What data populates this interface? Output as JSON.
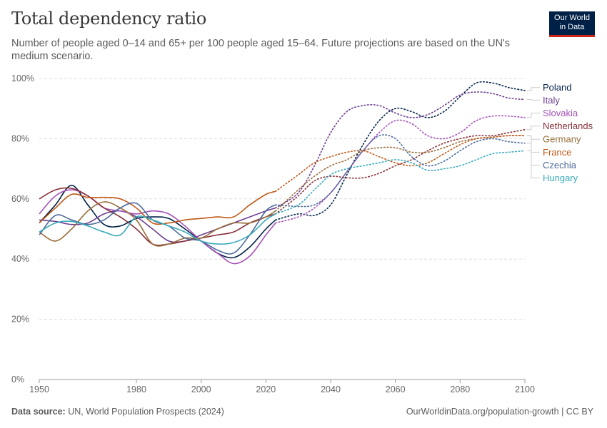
{
  "header": {
    "title": "Total dependency ratio",
    "subtitle": "Number of people aged 0–14 and 65+ per 100 people aged 15–64. Future projections are based on the UN's medium scenario."
  },
  "logo": {
    "line1": "Our World",
    "line2": "in Data"
  },
  "footer": {
    "source_label": "Data source:",
    "source_text": "UN, World Population Prospects (2024)",
    "url_text": "OurWorldinData.org/population-growth | CC BY"
  },
  "chart_data": {
    "type": "line",
    "title": "Total dependency ratio",
    "xlim": [
      1950,
      2100
    ],
    "ylim": [
      0,
      100
    ],
    "x_ticks": [
      1950,
      1980,
      2000,
      2020,
      2040,
      2060,
      2080,
      2100
    ],
    "x_tick_labels": [
      "1950",
      "1980",
      "2000",
      "2020",
      "2040",
      "2060",
      "2080",
      "2100"
    ],
    "y_ticks": [
      0,
      20,
      40,
      60,
      80,
      100
    ],
    "y_tick_labels": [
      "0%",
      "20%",
      "40%",
      "60%",
      "80%",
      "100%"
    ],
    "grid": "horizontal dashed",
    "projection_start": 2023,
    "legend_position": "right",
    "series": [
      {
        "name": "Poland",
        "color": "#002147",
        "legend_y": 97,
        "observed": [
          [
            1950,
            52
          ],
          [
            1955,
            58
          ],
          [
            1960,
            64.5
          ],
          [
            1965,
            58
          ],
          [
            1970,
            51.5
          ],
          [
            1975,
            51
          ],
          [
            1980,
            53.5
          ],
          [
            1985,
            54
          ],
          [
            1990,
            53.5
          ],
          [
            1995,
            50
          ],
          [
            2000,
            46
          ],
          [
            2005,
            42
          ],
          [
            2010,
            40.5
          ],
          [
            2015,
            44
          ],
          [
            2020,
            50
          ],
          [
            2023,
            53
          ]
        ],
        "projected": [
          [
            2023,
            53
          ],
          [
            2030,
            55
          ],
          [
            2035,
            54.5
          ],
          [
            2040,
            58
          ],
          [
            2045,
            68
          ],
          [
            2050,
            78
          ],
          [
            2055,
            86
          ],
          [
            2060,
            90
          ],
          [
            2065,
            89
          ],
          [
            2070,
            87
          ],
          [
            2075,
            89
          ],
          [
            2080,
            94
          ],
          [
            2085,
            98.5
          ],
          [
            2090,
            98.5
          ],
          [
            2095,
            97
          ],
          [
            2100,
            96
          ]
        ]
      },
      {
        "name": "Italy",
        "color": "#6d3e91",
        "legend_y": 92.8,
        "observed": [
          [
            1950,
            53
          ],
          [
            1955,
            52.5
          ],
          [
            1960,
            51.5
          ],
          [
            1965,
            52
          ],
          [
            1970,
            55
          ],
          [
            1975,
            56
          ],
          [
            1980,
            54
          ],
          [
            1985,
            50
          ],
          [
            1990,
            46
          ],
          [
            1995,
            46
          ],
          [
            2000,
            48
          ],
          [
            2005,
            50
          ],
          [
            2010,
            52
          ],
          [
            2015,
            54
          ],
          [
            2020,
            56
          ],
          [
            2023,
            57
          ]
        ],
        "projected": [
          [
            2023,
            57
          ],
          [
            2030,
            62
          ],
          [
            2035,
            71
          ],
          [
            2040,
            82
          ],
          [
            2045,
            89
          ],
          [
            2050,
            91
          ],
          [
            2055,
            91
          ],
          [
            2060,
            88.5
          ],
          [
            2065,
            87
          ],
          [
            2070,
            88
          ],
          [
            2075,
            91
          ],
          [
            2080,
            94.5
          ],
          [
            2085,
            95.5
          ],
          [
            2090,
            95
          ],
          [
            2095,
            93.5
          ],
          [
            2100,
            93
          ]
        ]
      },
      {
        "name": "Slovakia",
        "color": "#a652ba",
        "legend_y": 88.5,
        "observed": [
          [
            1950,
            55
          ],
          [
            1955,
            61
          ],
          [
            1960,
            63
          ],
          [
            1965,
            61
          ],
          [
            1970,
            57
          ],
          [
            1975,
            56
          ],
          [
            1980,
            55
          ],
          [
            1985,
            56
          ],
          [
            1990,
            55
          ],
          [
            1995,
            51
          ],
          [
            2000,
            46
          ],
          [
            2005,
            42
          ],
          [
            2010,
            38.5
          ],
          [
            2015,
            41
          ],
          [
            2020,
            48
          ],
          [
            2023,
            52
          ]
        ],
        "projected": [
          [
            2023,
            52
          ],
          [
            2030,
            54
          ],
          [
            2035,
            57
          ],
          [
            2040,
            62
          ],
          [
            2045,
            69
          ],
          [
            2050,
            76
          ],
          [
            2055,
            82
          ],
          [
            2060,
            86
          ],
          [
            2065,
            85
          ],
          [
            2070,
            81
          ],
          [
            2075,
            80
          ],
          [
            2080,
            82
          ],
          [
            2085,
            86
          ],
          [
            2090,
            87.5
          ],
          [
            2095,
            87.5
          ],
          [
            2100,
            87
          ]
        ]
      },
      {
        "name": "Netherlands",
        "color": "#883039",
        "legend_y": 84.2,
        "observed": [
          [
            1950,
            60
          ],
          [
            1955,
            63
          ],
          [
            1960,
            63.5
          ],
          [
            1965,
            61
          ],
          [
            1970,
            57
          ],
          [
            1975,
            54
          ],
          [
            1980,
            50
          ],
          [
            1985,
            45
          ],
          [
            1990,
            45
          ],
          [
            1995,
            46
          ],
          [
            2000,
            47
          ],
          [
            2005,
            48
          ],
          [
            2010,
            49
          ],
          [
            2015,
            52
          ],
          [
            2020,
            54
          ],
          [
            2023,
            55
          ]
        ],
        "projected": [
          [
            2023,
            55
          ],
          [
            2030,
            61
          ],
          [
            2035,
            66
          ],
          [
            2040,
            67.5
          ],
          [
            2045,
            67
          ],
          [
            2050,
            67
          ],
          [
            2055,
            68.5
          ],
          [
            2060,
            71
          ],
          [
            2065,
            73
          ],
          [
            2070,
            76
          ],
          [
            2075,
            78.5
          ],
          [
            2080,
            80
          ],
          [
            2085,
            81
          ],
          [
            2090,
            81
          ],
          [
            2095,
            82
          ],
          [
            2100,
            83
          ]
        ]
      },
      {
        "name": "Germany",
        "color": "#996d39",
        "legend_y": 79.8,
        "observed": [
          [
            1950,
            49
          ],
          [
            1955,
            46
          ],
          [
            1960,
            50
          ],
          [
            1965,
            56
          ],
          [
            1970,
            59
          ],
          [
            1975,
            57
          ],
          [
            1980,
            53
          ],
          [
            1985,
            45
          ],
          [
            1990,
            45
          ],
          [
            1995,
            47
          ],
          [
            2000,
            47
          ],
          [
            2005,
            50
          ],
          [
            2010,
            52
          ],
          [
            2015,
            52
          ],
          [
            2020,
            54
          ],
          [
            2023,
            56
          ]
        ],
        "projected": [
          [
            2023,
            56
          ],
          [
            2030,
            63
          ],
          [
            2035,
            67.5
          ],
          [
            2040,
            71
          ],
          [
            2045,
            73
          ],
          [
            2050,
            76
          ],
          [
            2055,
            77
          ],
          [
            2060,
            77
          ],
          [
            2065,
            75.5
          ],
          [
            2070,
            75.5
          ],
          [
            2075,
            77
          ],
          [
            2080,
            79
          ],
          [
            2085,
            80
          ],
          [
            2090,
            80.5
          ],
          [
            2095,
            81
          ],
          [
            2100,
            81
          ]
        ]
      },
      {
        "name": "France",
        "color": "#c05917",
        "legend_y": 75.5,
        "observed": [
          [
            1950,
            52
          ],
          [
            1955,
            57
          ],
          [
            1960,
            61.5
          ],
          [
            1965,
            60.5
          ],
          [
            1970,
            60.5
          ],
          [
            1975,
            60
          ],
          [
            1980,
            57
          ],
          [
            1985,
            52
          ],
          [
            1990,
            52
          ],
          [
            1995,
            53
          ],
          [
            2000,
            53.5
          ],
          [
            2005,
            54
          ],
          [
            2010,
            54
          ],
          [
            2015,
            58
          ],
          [
            2020,
            61.5
          ],
          [
            2023,
            62.5
          ]
        ],
        "projected": [
          [
            2023,
            62.5
          ],
          [
            2030,
            68
          ],
          [
            2035,
            72
          ],
          [
            2040,
            74
          ],
          [
            2045,
            75.5
          ],
          [
            2050,
            76
          ],
          [
            2055,
            74
          ],
          [
            2060,
            72
          ],
          [
            2065,
            71
          ],
          [
            2070,
            72
          ],
          [
            2075,
            75
          ],
          [
            2080,
            78
          ],
          [
            2085,
            80
          ],
          [
            2090,
            80.5
          ],
          [
            2095,
            81
          ],
          [
            2100,
            81
          ]
        ]
      },
      {
        "name": "Czechia",
        "color": "#4c6a9c",
        "legend_y": 71.2,
        "observed": [
          [
            1950,
            48
          ],
          [
            1955,
            54.5
          ],
          [
            1960,
            53
          ],
          [
            1965,
            51.5
          ],
          [
            1970,
            53
          ],
          [
            1975,
            57
          ],
          [
            1980,
            58.5
          ],
          [
            1985,
            53
          ],
          [
            1990,
            51
          ],
          [
            1995,
            47
          ],
          [
            2000,
            46
          ],
          [
            2005,
            43
          ],
          [
            2010,
            42
          ],
          [
            2015,
            48
          ],
          [
            2020,
            56
          ],
          [
            2023,
            58
          ]
        ],
        "projected": [
          [
            2023,
            58
          ],
          [
            2030,
            57.5
          ],
          [
            2035,
            58
          ],
          [
            2040,
            62
          ],
          [
            2045,
            69
          ],
          [
            2050,
            76
          ],
          [
            2055,
            81
          ],
          [
            2060,
            80
          ],
          [
            2065,
            74
          ],
          [
            2070,
            71
          ],
          [
            2075,
            72.5
          ],
          [
            2080,
            76
          ],
          [
            2085,
            79
          ],
          [
            2090,
            80
          ],
          [
            2095,
            79
          ],
          [
            2100,
            78.5
          ]
        ]
      },
      {
        "name": "Hungary",
        "color": "#38aaba",
        "legend_y": 67,
        "observed": [
          [
            1950,
            49
          ],
          [
            1955,
            52
          ],
          [
            1960,
            52.5
          ],
          [
            1965,
            51
          ],
          [
            1970,
            49
          ],
          [
            1975,
            48
          ],
          [
            1980,
            54
          ],
          [
            1985,
            53
          ],
          [
            1990,
            51
          ],
          [
            1995,
            49
          ],
          [
            2000,
            46
          ],
          [
            2005,
            45
          ],
          [
            2010,
            45.5
          ],
          [
            2015,
            48
          ],
          [
            2020,
            53
          ],
          [
            2023,
            55
          ]
        ],
        "projected": [
          [
            2023,
            55
          ],
          [
            2030,
            58
          ],
          [
            2035,
            63
          ],
          [
            2040,
            68
          ],
          [
            2045,
            70
          ],
          [
            2050,
            71
          ],
          [
            2055,
            72
          ],
          [
            2060,
            73
          ],
          [
            2065,
            72
          ],
          [
            2070,
            69.5
          ],
          [
            2075,
            70
          ],
          [
            2080,
            71
          ],
          [
            2085,
            73
          ],
          [
            2090,
            75
          ],
          [
            2095,
            75.5
          ],
          [
            2100,
            76
          ]
        ]
      }
    ]
  }
}
